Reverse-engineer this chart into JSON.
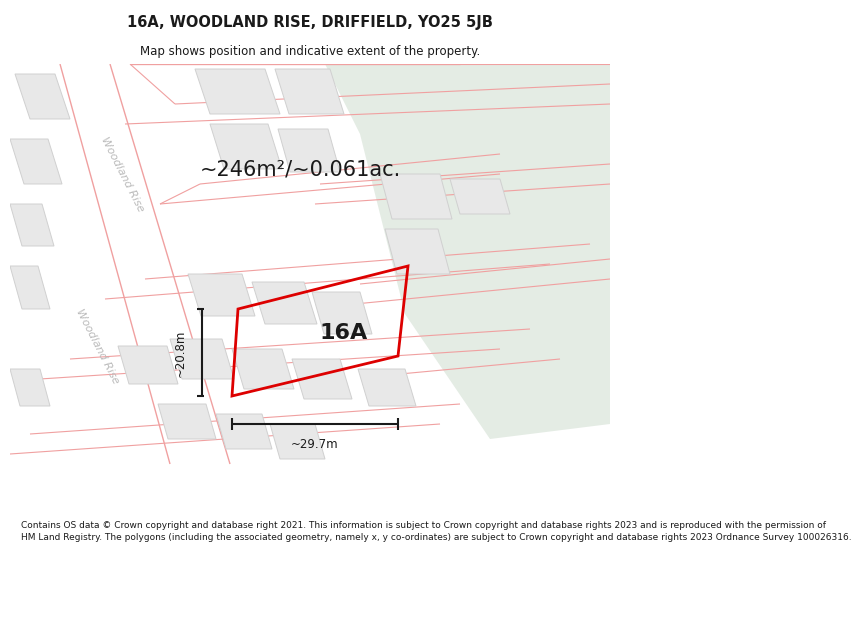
{
  "title_line1": "16A, WOODLAND RISE, DRIFFIELD, YO25 5JB",
  "title_line2": "Map shows position and indicative extent of the property.",
  "area_text": "~246m²/~0.061ac.",
  "label_16A": "16A",
  "dim_height": "~20.8m",
  "dim_width": "~29.7m",
  "footer_lines": [
    "Contains OS data © Crown copyright and database right 2021. This information is subject to Crown copyright and database rights 2023 and is reproduced with the permission of",
    "HM Land Registry. The polygons (including the associated geometry, namely x, y co-ordinates) are subject to Crown copyright and database rights 2023 Ordnance Survey 100026316."
  ],
  "road_label": "Woodland Rise",
  "bg_map_color": "#f8f8f8",
  "bg_green_color": "#e4ece4",
  "road_line_color": "#f0a0a0",
  "building_fill_color": "#e8e8e8",
  "building_edge_color": "#d0d0d0",
  "plot_outline_color": "#dd0000",
  "dim_line_color": "#1a1a1a",
  "text_color": "#1a1a1a",
  "road_text_color": "#bbbbbb",
  "title_fontsize": 10.5,
  "subtitle_fontsize": 8.5,
  "area_fontsize": 15,
  "label_fontsize": 16,
  "dim_fontsize": 8.5,
  "road_label_fontsize": 8,
  "footer_fontsize": 6.5
}
